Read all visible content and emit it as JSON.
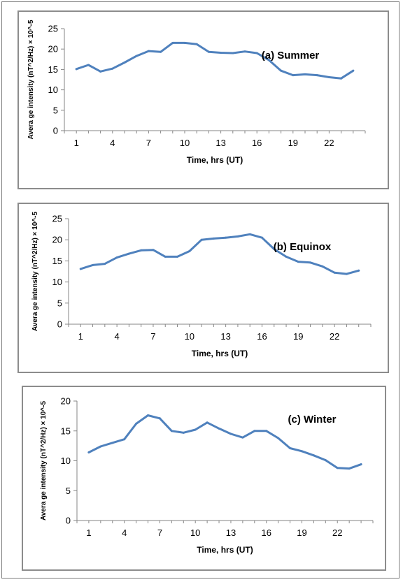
{
  "chart_data": [
    {
      "type": "line",
      "title": "(a) Summer",
      "xlabel": "Time, hrs (UT)",
      "ylabel": "Avera ge intensity (nT^2/Hz) × 10^-5",
      "x_ticks": [
        1,
        4,
        7,
        10,
        13,
        16,
        19,
        22
      ],
      "y_ticks": [
        0,
        5,
        10,
        15,
        20,
        25
      ],
      "ylim": [
        0,
        25
      ],
      "xlim": [
        0,
        25
      ],
      "grid": false,
      "color": "#4f81bd",
      "x": [
        1,
        2,
        3,
        4,
        5,
        6,
        7,
        8,
        9,
        10,
        11,
        12,
        13,
        14,
        15,
        16,
        17,
        18,
        19,
        20,
        21,
        22,
        23,
        24
      ],
      "values": [
        15.1,
        16.1,
        14.5,
        15.2,
        16.7,
        18.3,
        19.5,
        19.3,
        21.5,
        21.5,
        21.2,
        19.3,
        19.1,
        19.0,
        19.4,
        19.0,
        17.3,
        14.7,
        13.6,
        13.8,
        13.6,
        13.1,
        12.8,
        14.7
      ]
    },
    {
      "type": "line",
      "title": "(b) Equinox",
      "xlabel": "Time, hrs (UT)",
      "ylabel": "Avera ge intensity (nT^2/Hz) × 10^-5",
      "x_ticks": [
        1,
        4,
        7,
        10,
        13,
        16,
        19,
        22
      ],
      "y_ticks": [
        0,
        5,
        10,
        15,
        20,
        25
      ],
      "ylim": [
        0,
        25
      ],
      "xlim": [
        0,
        25
      ],
      "grid": false,
      "color": "#4f81bd",
      "x": [
        1,
        2,
        3,
        4,
        5,
        6,
        7,
        8,
        9,
        10,
        11,
        12,
        13,
        14,
        15,
        16,
        17,
        18,
        19,
        20,
        21,
        22,
        23,
        24
      ],
      "values": [
        13.1,
        14.0,
        14.3,
        15.8,
        16.7,
        17.5,
        17.6,
        16.0,
        16.0,
        17.3,
        20.0,
        20.3,
        20.5,
        20.8,
        21.3,
        20.5,
        17.8,
        16.0,
        14.8,
        14.6,
        13.7,
        12.2,
        11.9,
        12.7
      ]
    },
    {
      "type": "line",
      "title": "(c) Winter",
      "xlabel": "Time, hrs (UT)",
      "ylabel": "Avera ge intensity (nT^2/Hz) × 10^-5",
      "x_ticks": [
        1,
        4,
        7,
        10,
        13,
        16,
        19,
        22
      ],
      "y_ticks": [
        0,
        5,
        10,
        15,
        20
      ],
      "ylim": [
        0,
        20
      ],
      "xlim": [
        0,
        25
      ],
      "grid": false,
      "color": "#4f81bd",
      "x": [
        1,
        2,
        3,
        4,
        5,
        6,
        7,
        8,
        9,
        10,
        11,
        12,
        13,
        14,
        15,
        16,
        17,
        18,
        19,
        20,
        21,
        22,
        23,
        24
      ],
      "values": [
        11.4,
        12.4,
        13.0,
        13.6,
        16.2,
        17.6,
        17.1,
        15.0,
        14.7,
        15.2,
        16.4,
        15.4,
        14.5,
        13.9,
        15.0,
        15.0,
        13.8,
        12.1,
        11.6,
        10.9,
        10.1,
        8.8,
        8.7,
        9.4
      ]
    }
  ]
}
